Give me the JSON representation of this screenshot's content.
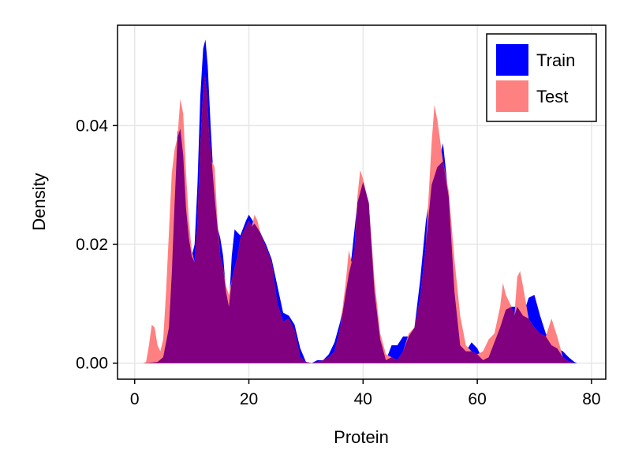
{
  "chart_data": {
    "type": "area",
    "xlabel": "Protein",
    "ylabel": "Density",
    "xlim": [
      -3,
      82.5
    ],
    "ylim": [
      -0.0027,
      0.0569
    ],
    "xticks": [
      0,
      20,
      40,
      60,
      80
    ],
    "xtick_labels": [
      "0",
      "20",
      "40",
      "60",
      "80"
    ],
    "yticks": [
      0.0,
      0.02,
      0.04
    ],
    "ytick_labels": [
      "0.00",
      "0.02",
      "0.04"
    ],
    "grid": true,
    "legend_position": "top-right",
    "series": [
      {
        "name": "Train",
        "color": "#0000ff",
        "opacity": 1.0,
        "points": [
          [
            1.5,
            0
          ],
          [
            3,
            0.0001
          ],
          [
            4,
            0.0002
          ],
          [
            5,
            0.001
          ],
          [
            6,
            0.006
          ],
          [
            6.5,
            0.015
          ],
          [
            7,
            0.027
          ],
          [
            7.5,
            0.039
          ],
          [
            8,
            0.0395
          ],
          [
            8.5,
            0.035
          ],
          [
            9,
            0.026
          ],
          [
            9.5,
            0.021
          ],
          [
            10,
            0.018
          ],
          [
            10.5,
            0.02
          ],
          [
            11,
            0.03
          ],
          [
            11.5,
            0.045
          ],
          [
            12,
            0.053
          ],
          [
            12.4,
            0.0545
          ],
          [
            12.8,
            0.05
          ],
          [
            13.3,
            0.04
          ],
          [
            14,
            0.028
          ],
          [
            14.5,
            0.023
          ],
          [
            15,
            0.021
          ],
          [
            15.5,
            0.018
          ],
          [
            16,
            0.012
          ],
          [
            16.5,
            0.0095
          ],
          [
            17,
            0.018
          ],
          [
            17.5,
            0.0225
          ],
          [
            18,
            0.022
          ],
          [
            18.5,
            0.0215
          ],
          [
            19.5,
            0.024
          ],
          [
            20,
            0.025
          ],
          [
            21,
            0.0235
          ],
          [
            22,
            0.022
          ],
          [
            23,
            0.02
          ],
          [
            24,
            0.0175
          ],
          [
            25,
            0.013
          ],
          [
            26,
            0.0085
          ],
          [
            27,
            0.008
          ],
          [
            28,
            0.0065
          ],
          [
            29,
            0.0025
          ],
          [
            30,
            0.0002
          ],
          [
            31,
            0
          ],
          [
            32,
            0.0005
          ],
          [
            33,
            0.0005
          ],
          [
            34,
            0.0015
          ],
          [
            35,
            0.0035
          ],
          [
            36,
            0.007
          ],
          [
            37,
            0.012
          ],
          [
            38,
            0.018
          ],
          [
            39,
            0.027
          ],
          [
            40,
            0.0305
          ],
          [
            41,
            0.027
          ],
          [
            42,
            0.012
          ],
          [
            43,
            0.004
          ],
          [
            44,
            0.0005
          ],
          [
            45,
            0.003
          ],
          [
            46,
            0.003
          ],
          [
            47,
            0.0045
          ],
          [
            48,
            0.0045
          ],
          [
            49,
            0.006
          ],
          [
            50,
            0.014
          ],
          [
            51,
            0.024
          ],
          [
            52,
            0.03
          ],
          [
            53,
            0.033
          ],
          [
            54,
            0.037
          ],
          [
            55,
            0.028
          ],
          [
            56,
            0.012
          ],
          [
            57,
            0.003
          ],
          [
            58,
            0.002
          ],
          [
            59,
            0.0035
          ],
          [
            60,
            0.0025
          ],
          [
            61,
            0.0005
          ],
          [
            62,
            0.001
          ],
          [
            63,
            0.0035
          ],
          [
            64,
            0.006
          ],
          [
            65,
            0.009
          ],
          [
            66,
            0.0095
          ],
          [
            67,
            0.0095
          ],
          [
            68,
            0.008
          ],
          [
            69,
            0.011
          ],
          [
            70,
            0.0115
          ],
          [
            71,
            0.008
          ],
          [
            72,
            0.005
          ],
          [
            73,
            0.003
          ],
          [
            74,
            0.0025
          ],
          [
            75,
            0.002
          ],
          [
            76,
            0.001
          ],
          [
            77,
            0.0002
          ],
          [
            77.5,
            0
          ]
        ]
      },
      {
        "name": "Test",
        "color": "#ff8080",
        "opacity": 1.0,
        "points": [
          [
            1.5,
            0
          ],
          [
            2,
            0.0002
          ],
          [
            2.5,
            0.003
          ],
          [
            3,
            0.0065
          ],
          [
            3.5,
            0.006
          ],
          [
            4,
            0.003
          ],
          [
            4.5,
            0.002
          ],
          [
            5,
            0.004
          ],
          [
            5.5,
            0.012
          ],
          [
            6,
            0.022
          ],
          [
            6.5,
            0.032
          ],
          [
            7,
            0.036
          ],
          [
            7.5,
            0.038
          ],
          [
            8,
            0.0445
          ],
          [
            8.5,
            0.042
          ],
          [
            9,
            0.032
          ],
          [
            9.5,
            0.024
          ],
          [
            10,
            0.019
          ],
          [
            10.5,
            0.017
          ],
          [
            11,
            0.024
          ],
          [
            11.5,
            0.037
          ],
          [
            12,
            0.046
          ],
          [
            12.3,
            0.0485
          ],
          [
            12.7,
            0.045
          ],
          [
            13,
            0.039
          ],
          [
            13.5,
            0.034
          ],
          [
            14,
            0.033
          ],
          [
            14.5,
            0.024
          ],
          [
            15,
            0.018
          ],
          [
            15.5,
            0.016
          ],
          [
            16,
            0.013
          ],
          [
            16.5,
            0.0115
          ],
          [
            17,
            0.014
          ],
          [
            17.5,
            0.016
          ],
          [
            18,
            0.018
          ],
          [
            18.5,
            0.021
          ],
          [
            19,
            0.022
          ],
          [
            19.5,
            0.023
          ],
          [
            20,
            0.024
          ],
          [
            20.5,
            0.023
          ],
          [
            21,
            0.025
          ],
          [
            21.5,
            0.024
          ],
          [
            22,
            0.022
          ],
          [
            23,
            0.0195
          ],
          [
            24,
            0.017
          ],
          [
            25,
            0.01
          ],
          [
            26,
            0.007
          ],
          [
            27,
            0.0075
          ],
          [
            28,
            0.0055
          ],
          [
            29,
            0.001
          ],
          [
            30,
            0.0002
          ],
          [
            31,
            0
          ],
          [
            32,
            0.0002
          ],
          [
            33,
            0.0005
          ],
          [
            34,
            0.001
          ],
          [
            35,
            0.002
          ],
          [
            36,
            0.006
          ],
          [
            37,
            0.014
          ],
          [
            37.5,
            0.019
          ],
          [
            38,
            0.017
          ],
          [
            38.5,
            0.019
          ],
          [
            39,
            0.028
          ],
          [
            39.5,
            0.0325
          ],
          [
            40,
            0.031
          ],
          [
            41,
            0.027
          ],
          [
            42,
            0.014
          ],
          [
            43,
            0.005
          ],
          [
            44,
            0.0015
          ],
          [
            45,
            0.001
          ],
          [
            46,
            0.0005
          ],
          [
            47,
            0.002
          ],
          [
            48,
            0.005
          ],
          [
            49,
            0.006
          ],
          [
            50,
            0.011
          ],
          [
            51,
            0.02
          ],
          [
            52,
            0.037
          ],
          [
            52.5,
            0.0435
          ],
          [
            53,
            0.041
          ],
          [
            54,
            0.034
          ],
          [
            55,
            0.029
          ],
          [
            56,
            0.0175
          ],
          [
            57,
            0.008
          ],
          [
            58,
            0.003
          ],
          [
            59,
            0.002
          ],
          [
            60,
            0.0015
          ],
          [
            61,
            0.002
          ],
          [
            62,
            0.004
          ],
          [
            63,
            0.005
          ],
          [
            64,
            0.0095
          ],
          [
            64.5,
            0.0135
          ],
          [
            65,
            0.0115
          ],
          [
            66,
            0.0095
          ],
          [
            66.5,
            0.008
          ],
          [
            67,
            0.0145
          ],
          [
            67.5,
            0.0155
          ],
          [
            68,
            0.013
          ],
          [
            69,
            0.0075
          ],
          [
            70,
            0.006
          ],
          [
            71,
            0.005
          ],
          [
            72,
            0.0045
          ],
          [
            73,
            0.0075
          ],
          [
            74,
            0.0045
          ],
          [
            75,
            0.001
          ],
          [
            76,
            0.0003
          ],
          [
            77,
            0
          ]
        ]
      }
    ],
    "overlap_color": "#800080"
  }
}
